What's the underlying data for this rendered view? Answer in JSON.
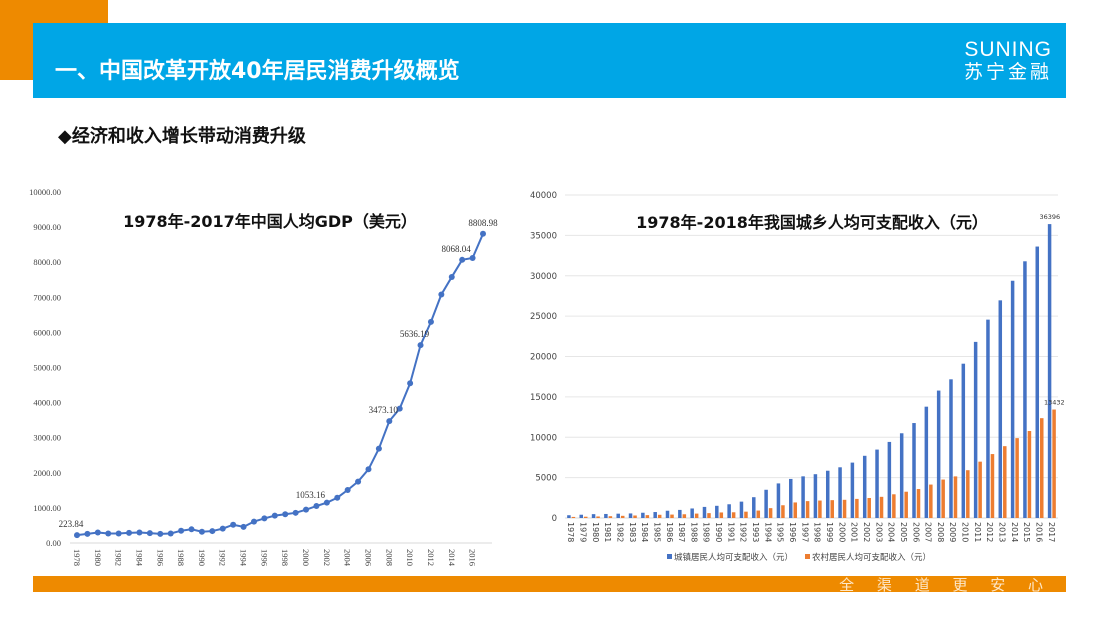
{
  "header": {
    "title": "一、中国改革开放40年居民消费升级概览",
    "logo_en": "SUNING",
    "logo_cn": "苏宁金融"
  },
  "subtitle": "◆经济和收入增长带动消费升级",
  "footer": {
    "slogan": "全 渠 道  更 安 心"
  },
  "colors": {
    "banner": "#00a6e6",
    "accent_orange": "#ee8a00",
    "line_blue": "#4472c4",
    "bar_orange": "#ed7d31"
  },
  "chart_data": [
    {
      "type": "line",
      "title": "1978年-2017年中国人均GDP（美元）",
      "x": [
        1978,
        1979,
        1980,
        1981,
        1982,
        1983,
        1984,
        1985,
        1986,
        1987,
        1988,
        1989,
        1990,
        1991,
        1992,
        1993,
        1994,
        1995,
        1996,
        1997,
        1998,
        1999,
        2000,
        2001,
        2002,
        2003,
        2004,
        2005,
        2006,
        2007,
        2008,
        2009,
        2010,
        2011,
        2012,
        2013,
        2014,
        2015,
        2016,
        2017
      ],
      "x_tick_labels": [
        "1978",
        "1980",
        "1982",
        "1984",
        "1986",
        "1988",
        "1990",
        "1992",
        "1994",
        "1996",
        "1998",
        "2000",
        "2002",
        "2004",
        "2006",
        "2008",
        "2010",
        "2012",
        "2014",
        "2016"
      ],
      "y_tick_labels": [
        "0.00",
        "1000.00",
        "2000.00",
        "3000.00",
        "4000.00",
        "5000.00",
        "6000.00",
        "7000.00",
        "8000.00",
        "9000.00",
        "10000.00"
      ],
      "ylim": [
        0,
        10000
      ],
      "grid": false,
      "series": [
        {
          "values": [
            223.84,
            260,
            300,
            270,
            270,
            290,
            300,
            280,
            260,
            270,
            350,
            390,
            320,
            340,
            410,
            520,
            460,
            610,
            700,
            780,
            820,
            860,
            950,
            1053.16,
            1150,
            1290,
            1510,
            1750,
            2100,
            2690,
            3473.1,
            3830,
            4550,
            5636.19,
            6300,
            7080,
            7580,
            8068.04,
            8120,
            8808.98
          ]
        }
      ],
      "data_labels": [
        {
          "x": 1978,
          "text": "223.84"
        },
        {
          "x": 2001,
          "text": "1053.16"
        },
        {
          "x": 2008,
          "text": "3473.10"
        },
        {
          "x": 2011,
          "text": "5636.19"
        },
        {
          "x": 2015,
          "text": "8068.04"
        },
        {
          "x": 2017,
          "text": "8808.98"
        }
      ]
    },
    {
      "type": "bar",
      "title": "1978年-2018年我国城乡人均可支配收入（元）",
      "categories": [
        "1978",
        "1979",
        "1980",
        "1981",
        "1982",
        "1983",
        "1984",
        "1985",
        "1986",
        "1987",
        "1988",
        "1989",
        "1990",
        "1991",
        "1992",
        "1993",
        "1994",
        "1995",
        "1996",
        "1997",
        "1998",
        "1999",
        "2000",
        "2001",
        "2002",
        "2003",
        "2004",
        "2005",
        "2006",
        "2007",
        "2008",
        "2009",
        "2010",
        "2011",
        "2012",
        "2013",
        "2014",
        "2015",
        "2016",
        "2017"
      ],
      "y_tick_labels": [
        "0",
        "5000",
        "10000",
        "15000",
        "20000",
        "25000",
        "30000",
        "35000",
        "40000"
      ],
      "ylim": [
        0,
        40000
      ],
      "grid": true,
      "legend": "bottom",
      "series": [
        {
          "name": "城镇居民人均可支配收入（元）",
          "values": [
            343,
            405,
            478,
            500,
            535,
            565,
            652,
            739,
            900,
            1002,
            1180,
            1374,
            1510,
            1701,
            2027,
            2577,
            3496,
            4283,
            4839,
            5160,
            5425,
            5854,
            6280,
            6860,
            7703,
            8472,
            9422,
            10493,
            11759,
            13786,
            15781,
            17175,
            19109,
            21810,
            24565,
            26955,
            29381,
            31790,
            33616,
            36396
          ]
        },
        {
          "name": "农村居民人均可支配收入（元）",
          "values": [
            134,
            160,
            191,
            223,
            270,
            310,
            355,
            398,
            424,
            463,
            545,
            602,
            686,
            709,
            784,
            922,
            1221,
            1578,
            1926,
            2090,
            2162,
            2210,
            2253,
            2366,
            2476,
            2622,
            2936,
            3255,
            3587,
            4140,
            4761,
            5153,
            5919,
            6977,
            7917,
            8896,
            9892,
            10772,
            12363,
            13432
          ]
        }
      ],
      "data_labels": [
        {
          "series": 0,
          "category": "2017",
          "text": "36396"
        },
        {
          "series": 1,
          "category": "2017",
          "text": "13432"
        }
      ]
    }
  ]
}
